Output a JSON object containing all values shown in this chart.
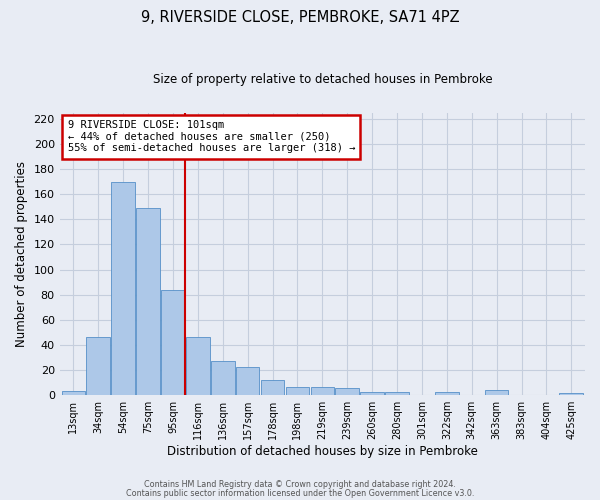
{
  "title": "9, RIVERSIDE CLOSE, PEMBROKE, SA71 4PZ",
  "subtitle": "Size of property relative to detached houses in Pembroke",
  "xlabel": "Distribution of detached houses by size in Pembroke",
  "ylabel": "Number of detached properties",
  "bar_labels": [
    "13sqm",
    "34sqm",
    "54sqm",
    "75sqm",
    "95sqm",
    "116sqm",
    "136sqm",
    "157sqm",
    "178sqm",
    "198sqm",
    "219sqm",
    "239sqm",
    "260sqm",
    "280sqm",
    "301sqm",
    "322sqm",
    "342sqm",
    "363sqm",
    "383sqm",
    "404sqm",
    "425sqm"
  ],
  "bar_values": [
    3,
    46,
    170,
    149,
    84,
    46,
    27,
    22,
    12,
    6,
    6,
    5,
    2,
    2,
    0,
    2,
    0,
    4,
    0,
    0,
    1
  ],
  "bar_color": "#adc8e8",
  "bar_edge_color": "#5590c8",
  "grid_color": "#c5cedd",
  "background_color": "#e8ecf4",
  "vline_x": 4.5,
  "vline_color": "#cc0000",
  "annotation_title": "9 RIVERSIDE CLOSE: 101sqm",
  "annotation_line1": "← 44% of detached houses are smaller (250)",
  "annotation_line2": "55% of semi-detached houses are larger (318) →",
  "annotation_box_color": "#ffffff",
  "annotation_border_color": "#cc0000",
  "ylim": [
    0,
    225
  ],
  "yticks": [
    0,
    20,
    40,
    60,
    80,
    100,
    120,
    140,
    160,
    180,
    200,
    220
  ],
  "footer_line1": "Contains HM Land Registry data © Crown copyright and database right 2024.",
  "footer_line2": "Contains public sector information licensed under the Open Government Licence v3.0."
}
